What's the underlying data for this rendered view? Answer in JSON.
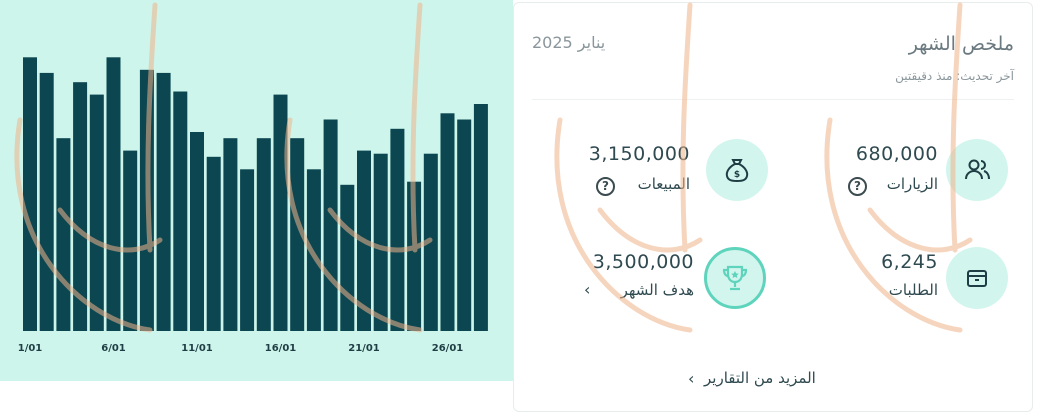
{
  "chart_data": {
    "type": "bar",
    "categories": [
      "1/01",
      "2/01",
      "3/01",
      "4/01",
      "5/01",
      "6/01",
      "7/01",
      "8/01",
      "9/01",
      "10/01",
      "11/01",
      "12/01",
      "13/01",
      "14/01",
      "15/01",
      "16/01",
      "17/01",
      "18/01",
      "19/01",
      "20/01",
      "21/01",
      "22/01",
      "23/01",
      "24/01",
      "25/01",
      "26/01",
      "27/01",
      "28/01"
    ],
    "x_tick_labels": [
      "1/01",
      "6/01",
      "11/01",
      "16/01",
      "21/01",
      "26/01"
    ],
    "values": [
      88,
      83,
      62,
      80,
      76,
      88,
      58,
      84,
      83,
      77,
      64,
      56,
      62,
      52,
      62,
      76,
      62,
      52,
      68,
      47,
      58,
      57,
      65,
      48,
      57,
      70,
      68,
      73
    ],
    "ylim": [
      0,
      100
    ],
    "bar_color": "#0b4651",
    "background": "#cdf5ec",
    "grid": false,
    "legend": "none"
  },
  "summary": {
    "title": "ملخص الشهر",
    "subtitle": "آخر تحديث: منذ دقيقتين",
    "date": "يناير 2025",
    "more_label": "المزيد من التقارير",
    "more_chevron": "‹",
    "stats": {
      "visits": {
        "value": "680,000",
        "label": "الزيارات",
        "icon": "users-icon",
        "help": "?"
      },
      "sales": {
        "value": "3,150,000",
        "label": "المبيعات",
        "icon": "money-bag-icon",
        "help": "?"
      },
      "orders": {
        "value": "6,245",
        "label": "الطلبات",
        "icon": "box-icon"
      },
      "goal": {
        "value": "3,500,000",
        "label": "هدف الشهر",
        "icon": "trophy-icon",
        "chevron": "‹"
      }
    }
  },
  "colors": {
    "accent": "#5fd4bd",
    "icon_bg": "#d2f5ee",
    "text": "#2f4a50",
    "watermark": "#f0b48a"
  }
}
